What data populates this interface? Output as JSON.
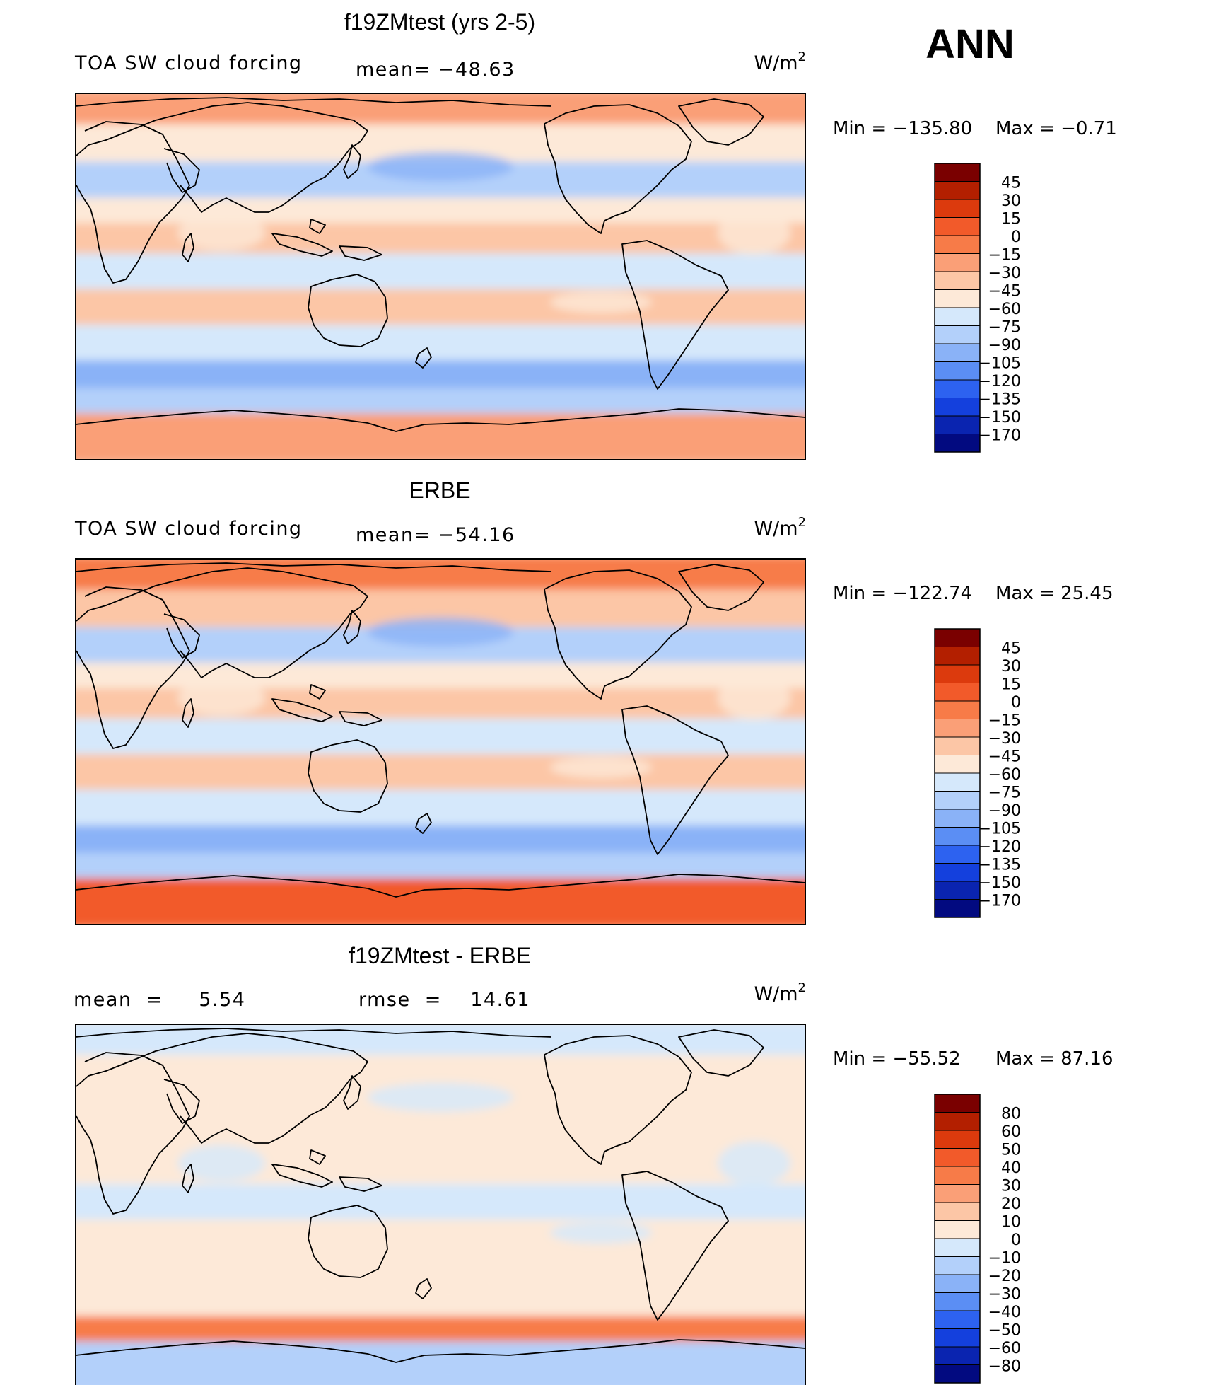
{
  "page_title": "ANN",
  "chart_data": [
    {
      "type": "heatmap",
      "title": "f19ZMtest (yrs 2-5)",
      "subtitle_left": "TOA SW cloud forcing",
      "stat_text": "mean= −48.63",
      "units_text": "W/m",
      "units_exp": "2",
      "min_text": "Min  =  −135.80",
      "max_text": "Max  =    −0.71",
      "stats": {
        "mean": -48.63,
        "min": -135.8,
        "max": -0.71
      },
      "colorbar": {
        "labels": [
          "45",
          "30",
          "15",
          "0",
          "−15",
          "−30",
          "−45",
          "−60",
          "−75",
          "−90",
          "−105",
          "−120",
          "−135",
          "−150",
          "−170"
        ],
        "colors": [
          "#7a0000",
          "#b31f00",
          "#dc3a0d",
          "#f25a2a",
          "#f77b48",
          "#fa9f77",
          "#fcc6a6",
          "#fde9d8",
          "#d5e8fb",
          "#b3d0fa",
          "#8ab2f7",
          "#5b8ef4",
          "#2d62f0",
          "#1440dd",
          "#0a24b0",
          "#020a80"
        ]
      },
      "bands": [
        {
          "lat": 82,
          "value": -15
        },
        {
          "lat": 65,
          "value": -45
        },
        {
          "lat": 45,
          "value": -75
        },
        {
          "lat": 30,
          "value": -55
        },
        {
          "lat": 20,
          "value": -35
        },
        {
          "lat": 0,
          "value": -60
        },
        {
          "lat": -15,
          "value": -35
        },
        {
          "lat": -35,
          "value": -60
        },
        {
          "lat": -50,
          "value": -95
        },
        {
          "lat": -62,
          "value": -75
        },
        {
          "lat": -75,
          "value": -15
        }
      ]
    },
    {
      "type": "heatmap",
      "title": "ERBE",
      "subtitle_left": "TOA SW cloud forcing",
      "stat_text": "mean= −54.16",
      "units_text": "W/m",
      "units_exp": "2",
      "min_text": "Min  =  −122.74",
      "max_text": "Max  =    25.45",
      "stats": {
        "mean": -54.16,
        "min": -122.74,
        "max": 25.45
      },
      "colorbar": {
        "labels": [
          "45",
          "30",
          "15",
          "0",
          "−15",
          "−30",
          "−45",
          "−60",
          "−75",
          "−90",
          "−105",
          "−120",
          "−135",
          "−150",
          "−170"
        ],
        "colors": [
          "#7a0000",
          "#b31f00",
          "#dc3a0d",
          "#f25a2a",
          "#f77b48",
          "#fa9f77",
          "#fcc6a6",
          "#fde9d8",
          "#d5e8fb",
          "#b3d0fa",
          "#8ab2f7",
          "#5b8ef4",
          "#2d62f0",
          "#1440dd",
          "#0a24b0",
          "#020a80"
        ]
      },
      "bands": [
        {
          "lat": 82,
          "value": -10
        },
        {
          "lat": 65,
          "value": -40
        },
        {
          "lat": 45,
          "value": -80
        },
        {
          "lat": 30,
          "value": -50
        },
        {
          "lat": 20,
          "value": -40
        },
        {
          "lat": 0,
          "value": -70
        },
        {
          "lat": -15,
          "value": -40
        },
        {
          "lat": -35,
          "value": -65
        },
        {
          "lat": -50,
          "value": -100
        },
        {
          "lat": -62,
          "value": -80
        },
        {
          "lat": -75,
          "value": 5
        }
      ]
    },
    {
      "type": "heatmap",
      "title": "f19ZMtest - ERBE",
      "subtitle_left": "mean  =     5.54",
      "stat_text": "rmse  =    14.61",
      "units_text": "W/m",
      "units_exp": "2",
      "min_text": "Min  =  −55.52",
      "max_text": "Max  =    87.16",
      "stats": {
        "mean": 5.54,
        "rmse": 14.61,
        "min": -55.52,
        "max": 87.16
      },
      "colorbar": {
        "labels": [
          "80",
          "60",
          "50",
          "40",
          "30",
          "20",
          "10",
          "0",
          "−10",
          "−20",
          "−30",
          "−40",
          "−50",
          "−60",
          "−80"
        ],
        "colors": [
          "#7a0000",
          "#b31f00",
          "#dc3a0d",
          "#f25a2a",
          "#f77b48",
          "#fa9f77",
          "#fcc6a6",
          "#fde9d8",
          "#d5e8fb",
          "#b3d0fa",
          "#8ab2f7",
          "#5b8ef4",
          "#2d62f0",
          "#1440dd",
          "#0a24b0",
          "#020a80"
        ]
      },
      "bands": [
        {
          "lat": 82,
          "value": -5
        },
        {
          "lat": 65,
          "value": 5
        },
        {
          "lat": 45,
          "value": 10
        },
        {
          "lat": 30,
          "value": 5
        },
        {
          "lat": 20,
          "value": 8
        },
        {
          "lat": 0,
          "value": -5
        },
        {
          "lat": -15,
          "value": 8
        },
        {
          "lat": -35,
          "value": 3
        },
        {
          "lat": -50,
          "value": 5
        },
        {
          "lat": -60,
          "value": 35
        },
        {
          "lat": -75,
          "value": -15
        }
      ]
    }
  ]
}
